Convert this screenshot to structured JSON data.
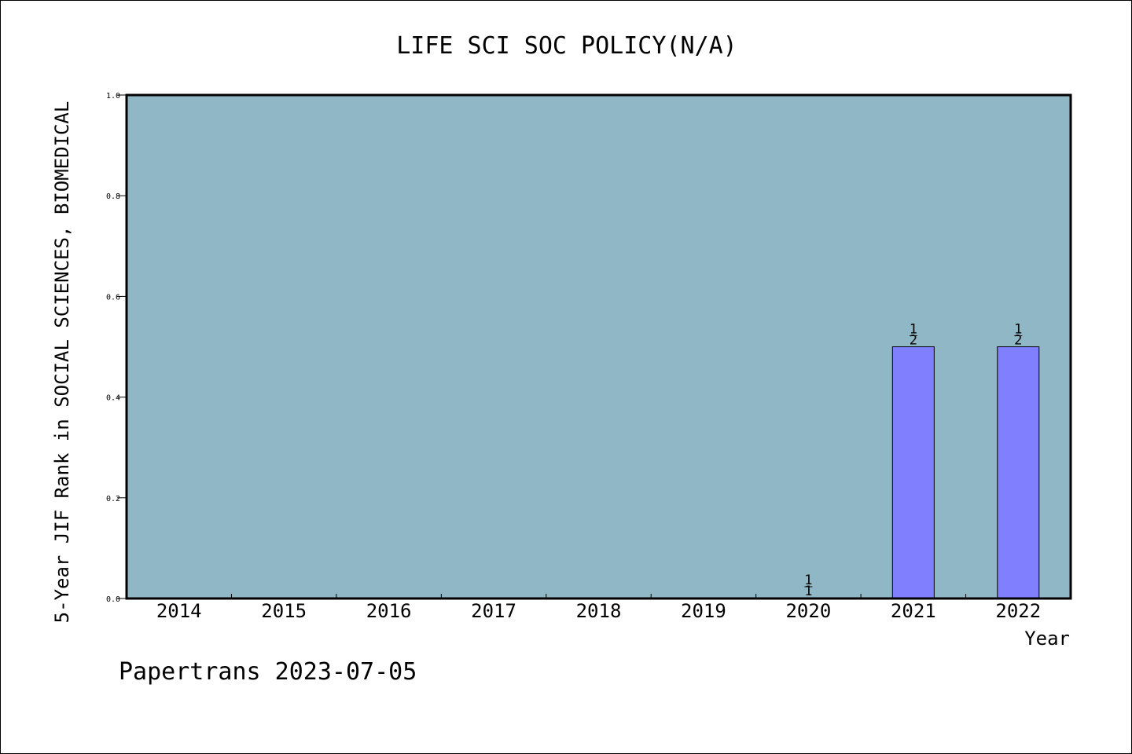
{
  "chart_data": {
    "type": "bar",
    "title": "LIFE SCI SOC POLICY(N/A)",
    "xlabel": "Year",
    "ylabel": "5-Year JIF Rank in SOCIAL SCIENCES, BIOMEDICAL",
    "categories": [
      "2014",
      "2015",
      "2016",
      "2017",
      "2018",
      "2019",
      "2020",
      "2021",
      "2022"
    ],
    "values": [
      null,
      null,
      null,
      null,
      null,
      null,
      0.0,
      0.5,
      0.5
    ],
    "bar_labels": [
      null,
      null,
      null,
      null,
      null,
      null,
      [
        "1",
        "1"
      ],
      [
        "1",
        "2"
      ],
      [
        "1",
        "2"
      ]
    ],
    "ylim": [
      0.0,
      1.0
    ],
    "yticks": [
      "0.0",
      "0.2",
      "0.4",
      "0.6",
      "0.8",
      "1.0"
    ],
    "grid": false,
    "colors": {
      "plot_bg": "#8fb7c5",
      "bar": "#8080ff",
      "axis": "#000000"
    }
  },
  "footer": "Papertrans 2023-07-05"
}
